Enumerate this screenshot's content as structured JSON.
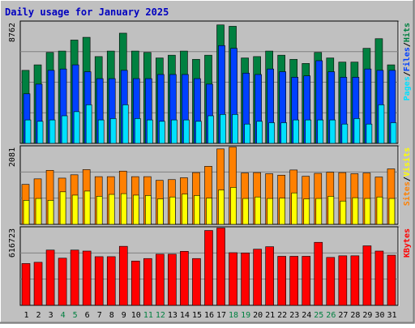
{
  "title": "Daily usage for January 2025",
  "colors": {
    "background": "#c0c0c0",
    "title": "#0000c0",
    "hits": "#008040",
    "files": "#0040ff",
    "pages": "#00e0ff",
    "visits": "#ffff00",
    "sites": "#ff8000",
    "kbytes": "#ff0000",
    "weekend_label": "#008040",
    "weekday_label": "#000000"
  },
  "chart_data": [
    {
      "type": "bar",
      "panel": "hits-files-pages",
      "ymax_label": "8762",
      "ylim": [
        0,
        8762
      ],
      "grid": true,
      "legend": [
        {
          "name": "Pages",
          "color": "#00e0ff"
        },
        {
          "name": "Files",
          "color": "#0040ff"
        },
        {
          "name": "Hits",
          "color": "#008040"
        }
      ],
      "categories": [
        "1",
        "2",
        "3",
        "4",
        "5",
        "6",
        "7",
        "8",
        "9",
        "10",
        "11",
        "12",
        "13",
        "14",
        "15",
        "16",
        "17",
        "18",
        "19",
        "20",
        "21",
        "22",
        "23",
        "24",
        "25",
        "26",
        "27",
        "28",
        "29",
        "30",
        "31"
      ],
      "series": [
        {
          "name": "Hits",
          "values": [
            5300,
            5700,
            6600,
            6700,
            7500,
            7700,
            6300,
            6700,
            8000,
            6700,
            6600,
            6200,
            6400,
            6700,
            6100,
            6400,
            8600,
            8500,
            6200,
            6300,
            6700,
            6400,
            6100,
            5800,
            6600,
            6200,
            5900,
            5900,
            6900,
            7600,
            5700
          ]
        },
        {
          "name": "Files",
          "values": [
            3600,
            4300,
            5300,
            5400,
            5700,
            5200,
            4700,
            4700,
            5300,
            4700,
            4700,
            5000,
            5000,
            5000,
            4700,
            4300,
            7100,
            6900,
            5100,
            5000,
            5400,
            5200,
            4800,
            4900,
            6000,
            5200,
            4800,
            4800,
            5400,
            5300,
            5300
          ]
        },
        {
          "name": "Pages",
          "values": [
            1700,
            1600,
            1700,
            2000,
            2300,
            2800,
            1700,
            1800,
            2800,
            1800,
            1700,
            1600,
            1700,
            1700,
            1600,
            2000,
            2100,
            2100,
            1400,
            1600,
            1500,
            1500,
            1700,
            1700,
            1700,
            1700,
            1400,
            1800,
            1400,
            2800,
            1500
          ]
        }
      ]
    },
    {
      "type": "bar",
      "panel": "visits-sites",
      "ymax_label": "2081",
      "ylim": [
        0,
        2081
      ],
      "grid": true,
      "legend": [
        {
          "name": "Sites",
          "color": "#ff8000"
        },
        {
          "name": "Visits",
          "color": "#ffff00"
        }
      ],
      "categories": [
        "1",
        "2",
        "3",
        "4",
        "5",
        "6",
        "7",
        "8",
        "9",
        "10",
        "11",
        "12",
        "13",
        "14",
        "15",
        "16",
        "17",
        "18",
        "19",
        "20",
        "21",
        "22",
        "23",
        "24",
        "25",
        "26",
        "27",
        "28",
        "29",
        "30",
        "31"
      ],
      "series": [
        {
          "name": "Sites",
          "values": [
            1080,
            1230,
            1460,
            1250,
            1340,
            1480,
            1290,
            1290,
            1440,
            1290,
            1290,
            1190,
            1210,
            1260,
            1400,
            1570,
            2040,
            2090,
            1390,
            1400,
            1370,
            1330,
            1470,
            1300,
            1380,
            1410,
            1400,
            1370,
            1390,
            1280,
            1500
          ]
        },
        {
          "name": "Visits",
          "values": [
            650,
            700,
            650,
            880,
            790,
            900,
            760,
            810,
            830,
            790,
            780,
            690,
            740,
            820,
            780,
            710,
            930,
            1000,
            700,
            740,
            700,
            710,
            850,
            690,
            700,
            760,
            630,
            720,
            700,
            740,
            700
          ]
        }
      ]
    },
    {
      "type": "bar",
      "panel": "kbytes",
      "ymax_label": "616723",
      "ylim": [
        0,
        616723
      ],
      "grid": true,
      "legend": [
        {
          "name": "KBytes",
          "color": "#ff0000"
        }
      ],
      "categories": [
        "1",
        "2",
        "3",
        "4",
        "5",
        "6",
        "7",
        "8",
        "9",
        "10",
        "11",
        "12",
        "13",
        "14",
        "15",
        "16",
        "17",
        "18",
        "19",
        "20",
        "21",
        "22",
        "23",
        "24",
        "25",
        "26",
        "27",
        "28",
        "29",
        "30",
        "31"
      ],
      "series": [
        {
          "name": "KBytes",
          "values": [
            335000,
            345000,
            443000,
            378000,
            443000,
            435000,
            390000,
            390000,
            473000,
            355000,
            375000,
            410000,
            410000,
            433000,
            375000,
            600000,
            620000,
            422000,
            420000,
            450000,
            470000,
            393000,
            393000,
            393000,
            505000,
            384000,
            397000,
            397000,
            477000,
            435000,
            402000
          ]
        }
      ]
    }
  ],
  "x_labels": [
    {
      "text": "1",
      "weekend": false
    },
    {
      "text": "2",
      "weekend": false
    },
    {
      "text": "3",
      "weekend": false
    },
    {
      "text": "4",
      "weekend": true
    },
    {
      "text": "5",
      "weekend": true
    },
    {
      "text": "6",
      "weekend": false
    },
    {
      "text": "7",
      "weekend": false
    },
    {
      "text": "8",
      "weekend": false
    },
    {
      "text": "9",
      "weekend": false
    },
    {
      "text": "10",
      "weekend": false
    },
    {
      "text": "11",
      "weekend": true
    },
    {
      "text": "12",
      "weekend": true
    },
    {
      "text": "13",
      "weekend": false
    },
    {
      "text": "14",
      "weekend": false
    },
    {
      "text": "15",
      "weekend": false
    },
    {
      "text": "16",
      "weekend": false
    },
    {
      "text": "17",
      "weekend": false
    },
    {
      "text": "18",
      "weekend": true
    },
    {
      "text": "19",
      "weekend": true
    },
    {
      "text": "20",
      "weekend": false
    },
    {
      "text": "21",
      "weekend": false
    },
    {
      "text": "22",
      "weekend": false
    },
    {
      "text": "23",
      "weekend": false
    },
    {
      "text": "24",
      "weekend": false
    },
    {
      "text": "25",
      "weekend": true
    },
    {
      "text": "26",
      "weekend": true
    },
    {
      "text": "27",
      "weekend": false
    },
    {
      "text": "28",
      "weekend": false
    },
    {
      "text": "29",
      "weekend": false
    },
    {
      "text": "30",
      "weekend": false
    },
    {
      "text": "31",
      "weekend": false
    }
  ]
}
